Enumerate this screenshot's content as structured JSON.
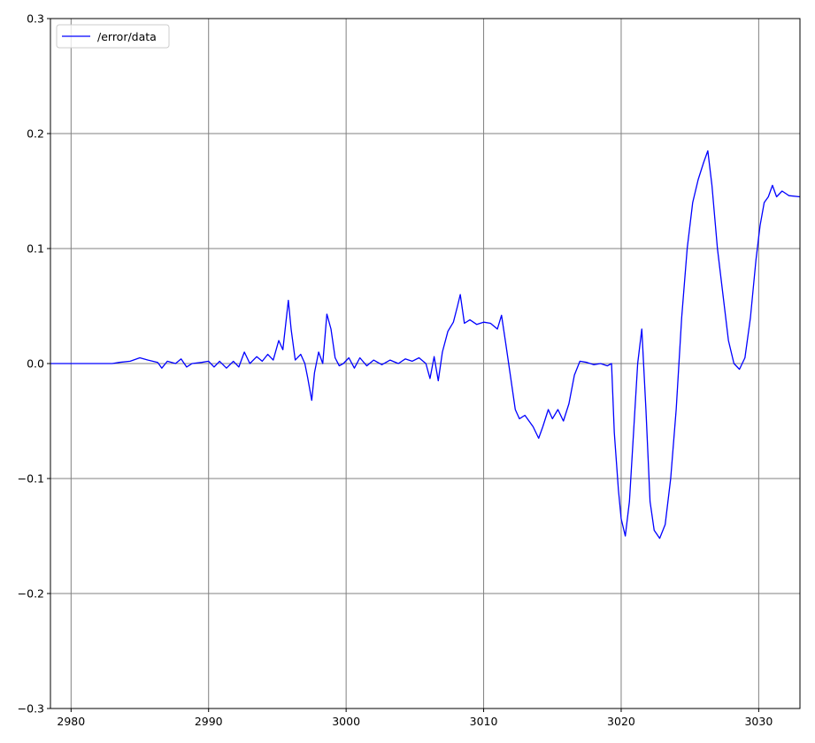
{
  "chart_data": {
    "type": "line",
    "xlim": [
      2978.5,
      3033
    ],
    "ylim": [
      -0.3,
      0.3
    ],
    "x_ticks": [
      2980,
      2990,
      3000,
      3010,
      3020,
      3030
    ],
    "y_ticks": [
      -0.3,
      -0.2,
      -0.1,
      0.0,
      0.1,
      0.2,
      0.3
    ],
    "x_tick_labels": [
      "2980",
      "2990",
      "3000",
      "3010",
      "3020",
      "3030"
    ],
    "y_tick_labels": [
      "−0.3",
      "−0.2",
      "−0.1",
      "0.0",
      "0.1",
      "0.2",
      "0.3"
    ],
    "grid": true,
    "grid_color": "#808080",
    "legend_position": "top-left",
    "series": [
      {
        "name": "/error/data",
        "color": "#0000ff",
        "points": [
          [
            2978.5,
            0.0
          ],
          [
            2983.0,
            0.0
          ],
          [
            2983.5,
            0.001
          ],
          [
            2984.3,
            0.002
          ],
          [
            2985.0,
            0.005
          ],
          [
            2985.6,
            0.003
          ],
          [
            2986.3,
            0.001
          ],
          [
            2986.6,
            -0.004
          ],
          [
            2987.0,
            0.002
          ],
          [
            2987.6,
            0.0
          ],
          [
            2988.0,
            0.004
          ],
          [
            2988.4,
            -0.003
          ],
          [
            2988.8,
            0.0
          ],
          [
            2989.5,
            0.001
          ],
          [
            2990.0,
            0.002
          ],
          [
            2990.4,
            -0.003
          ],
          [
            2990.8,
            0.002
          ],
          [
            2991.3,
            -0.004
          ],
          [
            2991.8,
            0.002
          ],
          [
            2992.2,
            -0.003
          ],
          [
            2992.6,
            0.01
          ],
          [
            2993.0,
            0.0
          ],
          [
            2993.5,
            0.006
          ],
          [
            2993.9,
            0.002
          ],
          [
            2994.3,
            0.008
          ],
          [
            2994.7,
            0.003
          ],
          [
            2995.1,
            0.02
          ],
          [
            2995.4,
            0.012
          ],
          [
            2995.8,
            0.055
          ],
          [
            2996.0,
            0.03
          ],
          [
            2996.3,
            0.003
          ],
          [
            2996.7,
            0.008
          ],
          [
            2997.0,
            0.0
          ],
          [
            2997.2,
            -0.012
          ],
          [
            2997.5,
            -0.032
          ],
          [
            2997.7,
            -0.008
          ],
          [
            2998.0,
            0.01
          ],
          [
            2998.3,
            0.0
          ],
          [
            2998.6,
            0.043
          ],
          [
            2998.9,
            0.03
          ],
          [
            2999.2,
            0.005
          ],
          [
            2999.5,
            -0.002
          ],
          [
            2999.8,
            0.0
          ],
          [
            3000.2,
            0.005
          ],
          [
            3000.6,
            -0.004
          ],
          [
            3001.0,
            0.005
          ],
          [
            3001.5,
            -0.002
          ],
          [
            3002.0,
            0.003
          ],
          [
            3002.6,
            -0.001
          ],
          [
            3003.2,
            0.003
          ],
          [
            3003.8,
            0.0
          ],
          [
            3004.3,
            0.004
          ],
          [
            3004.8,
            0.002
          ],
          [
            3005.3,
            0.005
          ],
          [
            3005.8,
            0.0
          ],
          [
            3006.1,
            -0.013
          ],
          [
            3006.4,
            0.006
          ],
          [
            3006.7,
            -0.015
          ],
          [
            3007.0,
            0.01
          ],
          [
            3007.4,
            0.028
          ],
          [
            3007.8,
            0.036
          ],
          [
            3008.1,
            0.05
          ],
          [
            3008.3,
            0.06
          ],
          [
            3008.6,
            0.035
          ],
          [
            3009.0,
            0.038
          ],
          [
            3009.5,
            0.034
          ],
          [
            3010.0,
            0.036
          ],
          [
            3010.5,
            0.035
          ],
          [
            3011.0,
            0.03
          ],
          [
            3011.3,
            0.042
          ],
          [
            3011.6,
            0.018
          ],
          [
            3012.0,
            -0.015
          ],
          [
            3012.3,
            -0.04
          ],
          [
            3012.6,
            -0.048
          ],
          [
            3013.0,
            -0.045
          ],
          [
            3013.3,
            -0.05
          ],
          [
            3013.6,
            -0.055
          ],
          [
            3014.0,
            -0.065
          ],
          [
            3014.3,
            -0.055
          ],
          [
            3014.7,
            -0.04
          ],
          [
            3015.0,
            -0.048
          ],
          [
            3015.4,
            -0.04
          ],
          [
            3015.8,
            -0.05
          ],
          [
            3016.2,
            -0.035
          ],
          [
            3016.6,
            -0.01
          ],
          [
            3017.0,
            0.002
          ],
          [
            3017.5,
            0.001
          ],
          [
            3018.0,
            -0.001
          ],
          [
            3018.5,
            0.0
          ],
          [
            3019.0,
            -0.002
          ],
          [
            3019.3,
            0.0
          ],
          [
            3019.5,
            -0.06
          ],
          [
            3019.8,
            -0.11
          ],
          [
            3020.0,
            -0.135
          ],
          [
            3020.3,
            -0.15
          ],
          [
            3020.6,
            -0.12
          ],
          [
            3020.9,
            -0.06
          ],
          [
            3021.2,
            0.0
          ],
          [
            3021.5,
            0.03
          ],
          [
            3021.8,
            -0.04
          ],
          [
            3022.1,
            -0.12
          ],
          [
            3022.4,
            -0.145
          ],
          [
            3022.8,
            -0.152
          ],
          [
            3023.2,
            -0.14
          ],
          [
            3023.6,
            -0.1
          ],
          [
            3024.0,
            -0.04
          ],
          [
            3024.4,
            0.04
          ],
          [
            3024.8,
            0.1
          ],
          [
            3025.2,
            0.14
          ],
          [
            3025.6,
            0.16
          ],
          [
            3026.0,
            0.175
          ],
          [
            3026.3,
            0.185
          ],
          [
            3026.6,
            0.155
          ],
          [
            3027.0,
            0.1
          ],
          [
            3027.4,
            0.06
          ],
          [
            3027.8,
            0.02
          ],
          [
            3028.2,
            0.0
          ],
          [
            3028.6,
            -0.005
          ],
          [
            3029.0,
            0.005
          ],
          [
            3029.4,
            0.04
          ],
          [
            3029.8,
            0.09
          ],
          [
            3030.1,
            0.12
          ],
          [
            3030.4,
            0.14
          ],
          [
            3030.7,
            0.145
          ],
          [
            3031.0,
            0.155
          ],
          [
            3031.3,
            0.145
          ],
          [
            3031.7,
            0.15
          ],
          [
            3032.2,
            0.146
          ],
          [
            3033.0,
            0.145
          ]
        ]
      }
    ]
  }
}
